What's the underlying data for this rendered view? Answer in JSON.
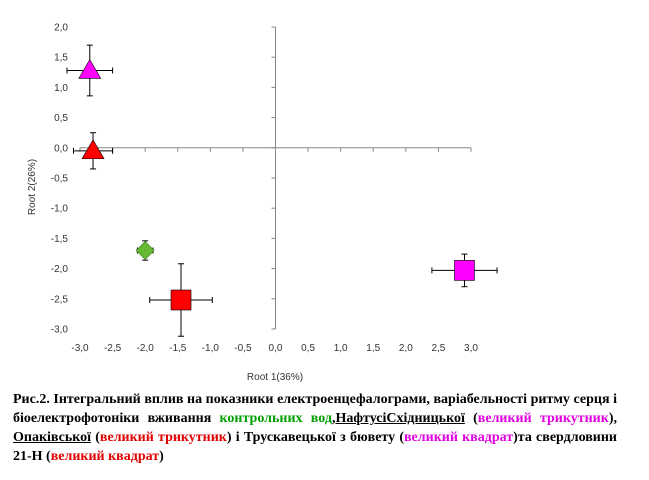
{
  "chart_data": {
    "type": "scatter",
    "xlabel": "Root 1(36%)",
    "ylabel": "Root 2(26%)",
    "xlim": [
      -3.0,
      3.0
    ],
    "ylim": [
      -3.0,
      2.0
    ],
    "x_ticks": [
      "-3,0",
      "-2,5",
      "-2,0",
      "-1,5",
      "-1,0",
      "-0,5",
      "0,0",
      "0,5",
      "1,0",
      "1,5",
      "2,0",
      "2,5",
      "3,0"
    ],
    "y_ticks": [
      "2,0",
      "1,5",
      "1,0",
      "0,5",
      "0,0",
      "-0,5",
      "-1,0",
      "-1,5",
      "-2,0",
      "-2,5",
      "-3,0"
    ],
    "grid": false,
    "points": [
      {
        "x": -2.85,
        "y": 1.28,
        "x_err": 0.35,
        "y_err": 0.42,
        "marker": "triangle",
        "color": "#ff00ff"
      },
      {
        "x": -2.8,
        "y": -0.05,
        "x_err": 0.3,
        "y_err": 0.3,
        "marker": "triangle",
        "color": "#ff0000"
      },
      {
        "x": -2.0,
        "y": -1.7,
        "x_err": 0.12,
        "y_err": 0.16,
        "marker": "diamond",
        "color": "#66bb33"
      },
      {
        "x": -1.45,
        "y": -2.52,
        "x_err": 0.48,
        "y_err": 0.6,
        "marker": "square",
        "color": "#ff0000"
      },
      {
        "x": 2.9,
        "y": -2.03,
        "x_err": 0.5,
        "y_err": 0.27,
        "marker": "square",
        "color": "#ff00ff"
      }
    ]
  },
  "caption": {
    "part1": "Рис.2. Інтегральний вплив на показники електроенцефалограми, варіабельності ритму серця і біоелектрофотоніки вживання ",
    "green1": "контрольних вод",
    "part2": ",",
    "naftusya": "НафтусіСхідницької",
    "part3": " (",
    "magenta1": "великий трикутник",
    "part4": "), ",
    "opaka": "Опаківської",
    "part5": " (",
    "red1": "великий трикутник",
    "part6": ") і Трускавецької з бювету (",
    "magenta2": "великий квадрат",
    "part7": ")та свердловини 21-Н (",
    "red2": "великий квадрат",
    "part8": ")"
  }
}
